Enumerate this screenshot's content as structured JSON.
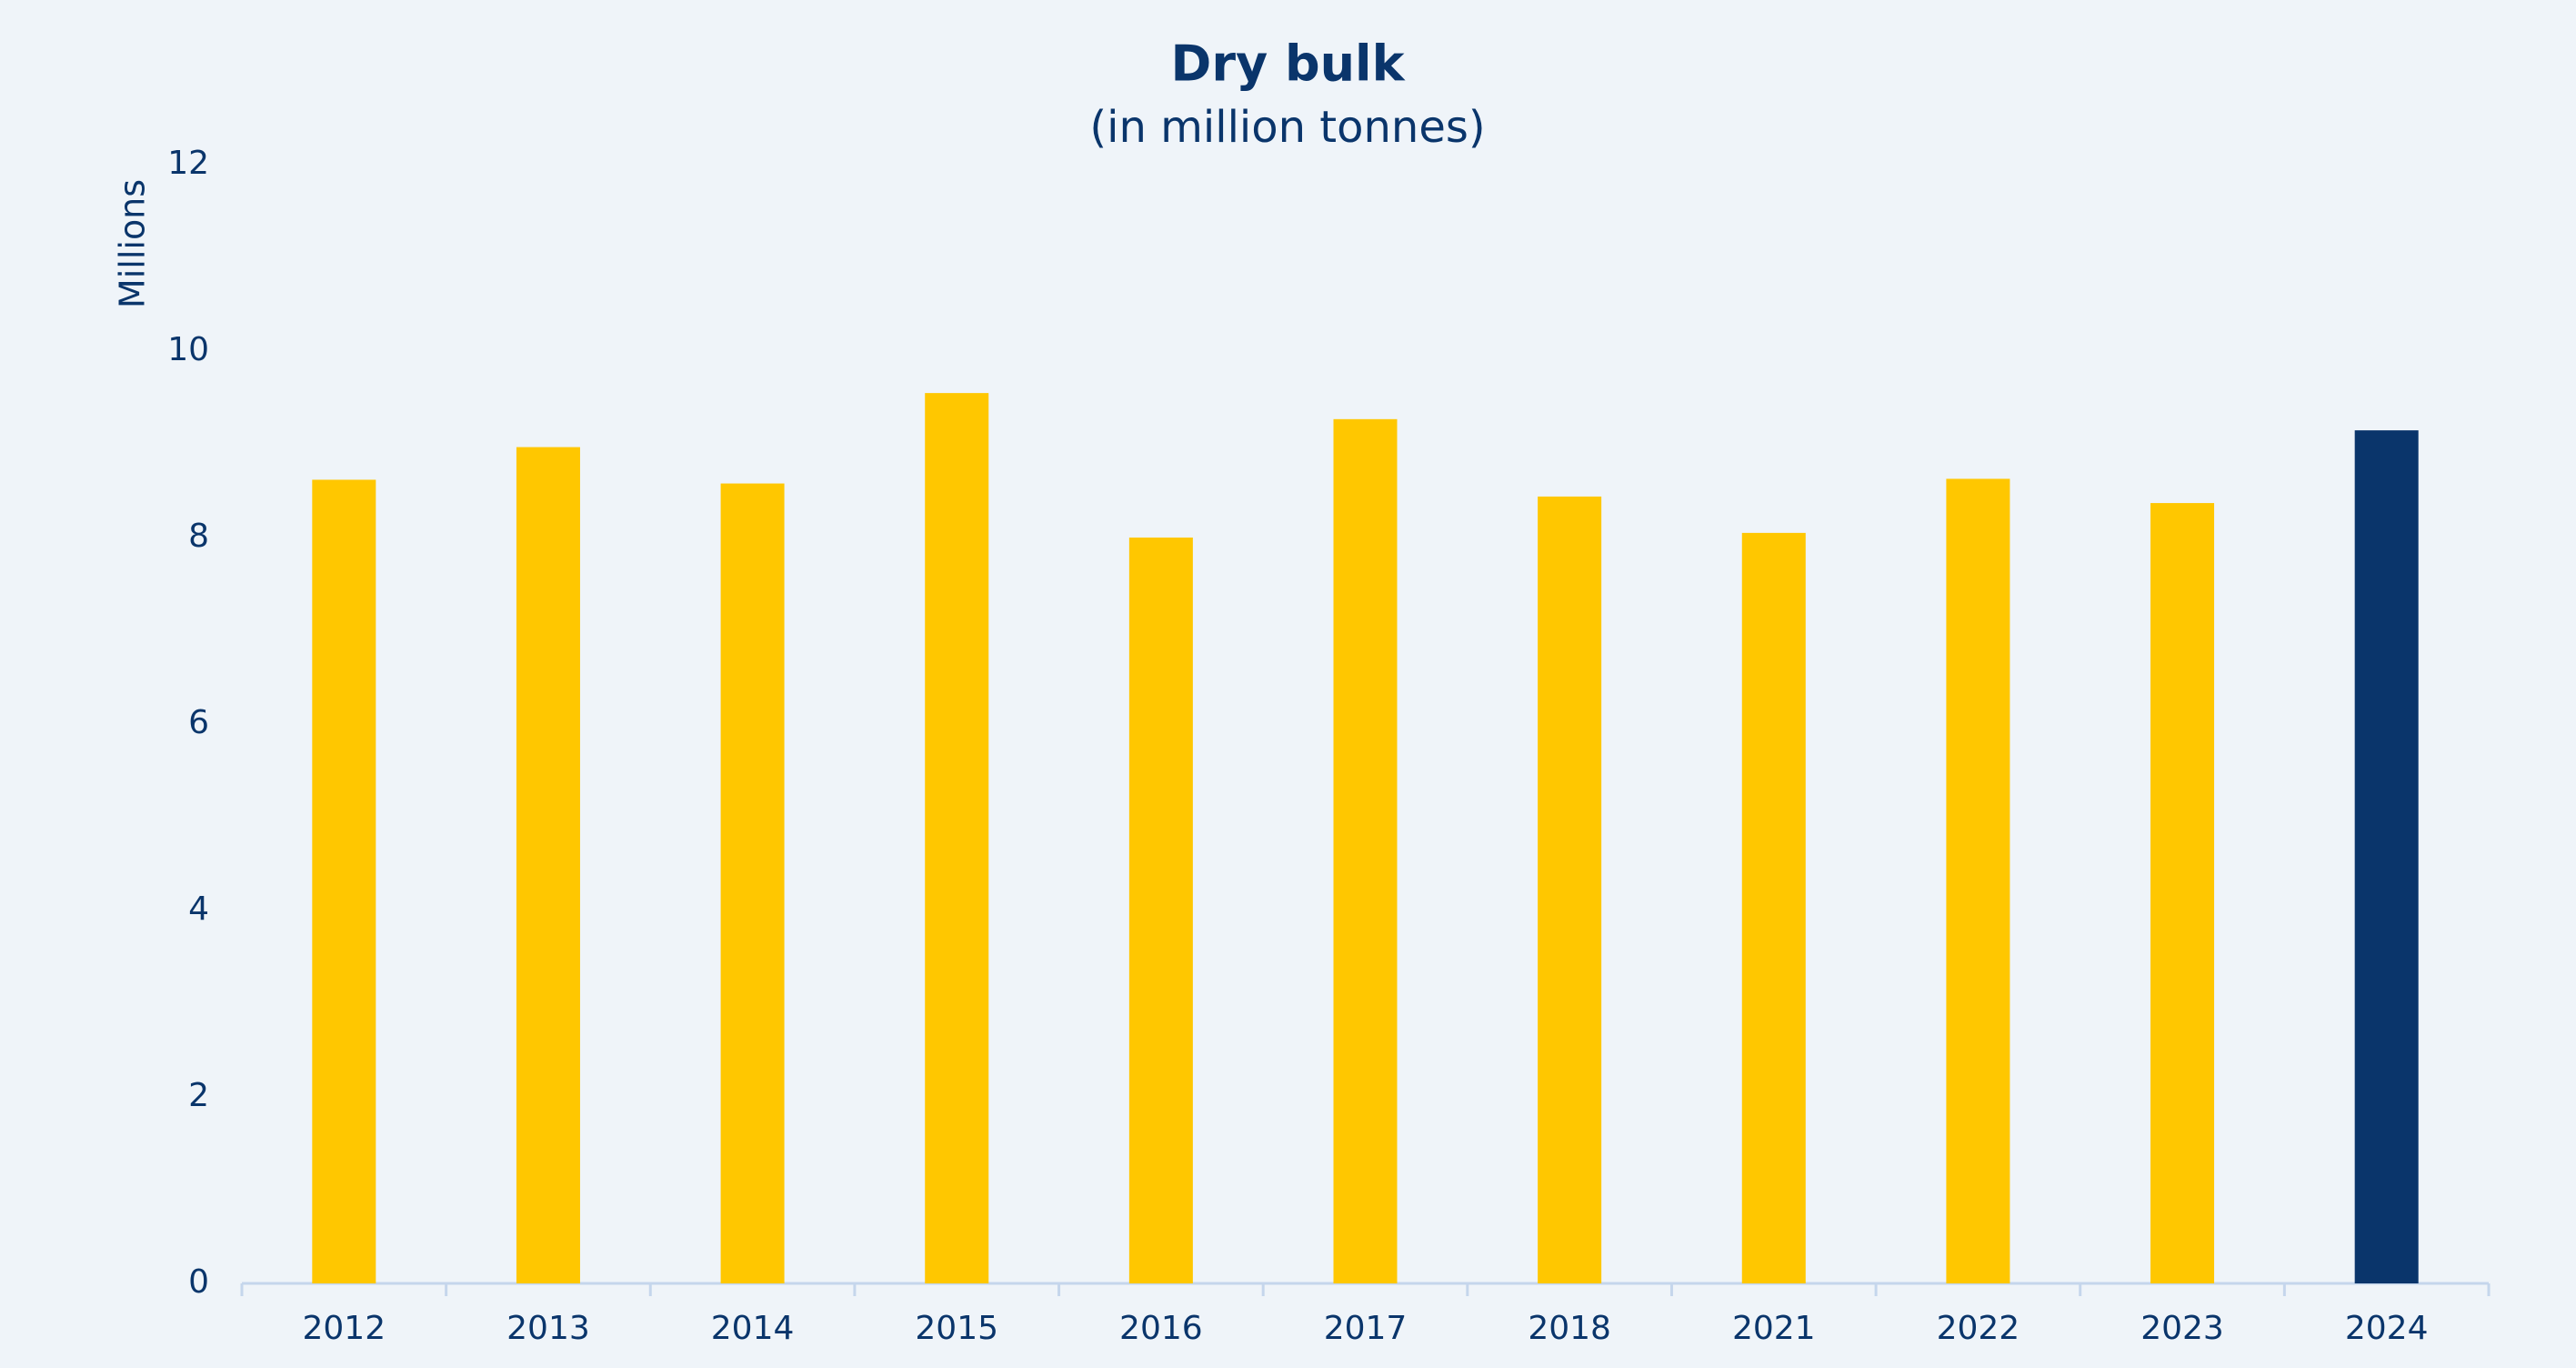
{
  "chart_data": {
    "type": "bar",
    "title": "Dry bulk",
    "subtitle": "(in million tonnes)",
    "y_label": "Millions",
    "categories": [
      "2012",
      "2013",
      "2014",
      "2015",
      "2016",
      "2017",
      "2018",
      "2021",
      "2022",
      "2023",
      "2024"
    ],
    "values": [
      8.62,
      8.97,
      8.58,
      9.55,
      8.0,
      9.27,
      8.44,
      8.05,
      8.63,
      8.37,
      9.15
    ],
    "colors": [
      "#ffc700",
      "#ffc700",
      "#ffc700",
      "#ffc700",
      "#ffc700",
      "#ffc700",
      "#ffc700",
      "#ffc700",
      "#ffc700",
      "#ffc700",
      "#0a356b"
    ],
    "ylim": [
      0,
      12
    ],
    "yticks": [
      0,
      2,
      4,
      6,
      8,
      10,
      12
    ],
    "grid": false
  }
}
